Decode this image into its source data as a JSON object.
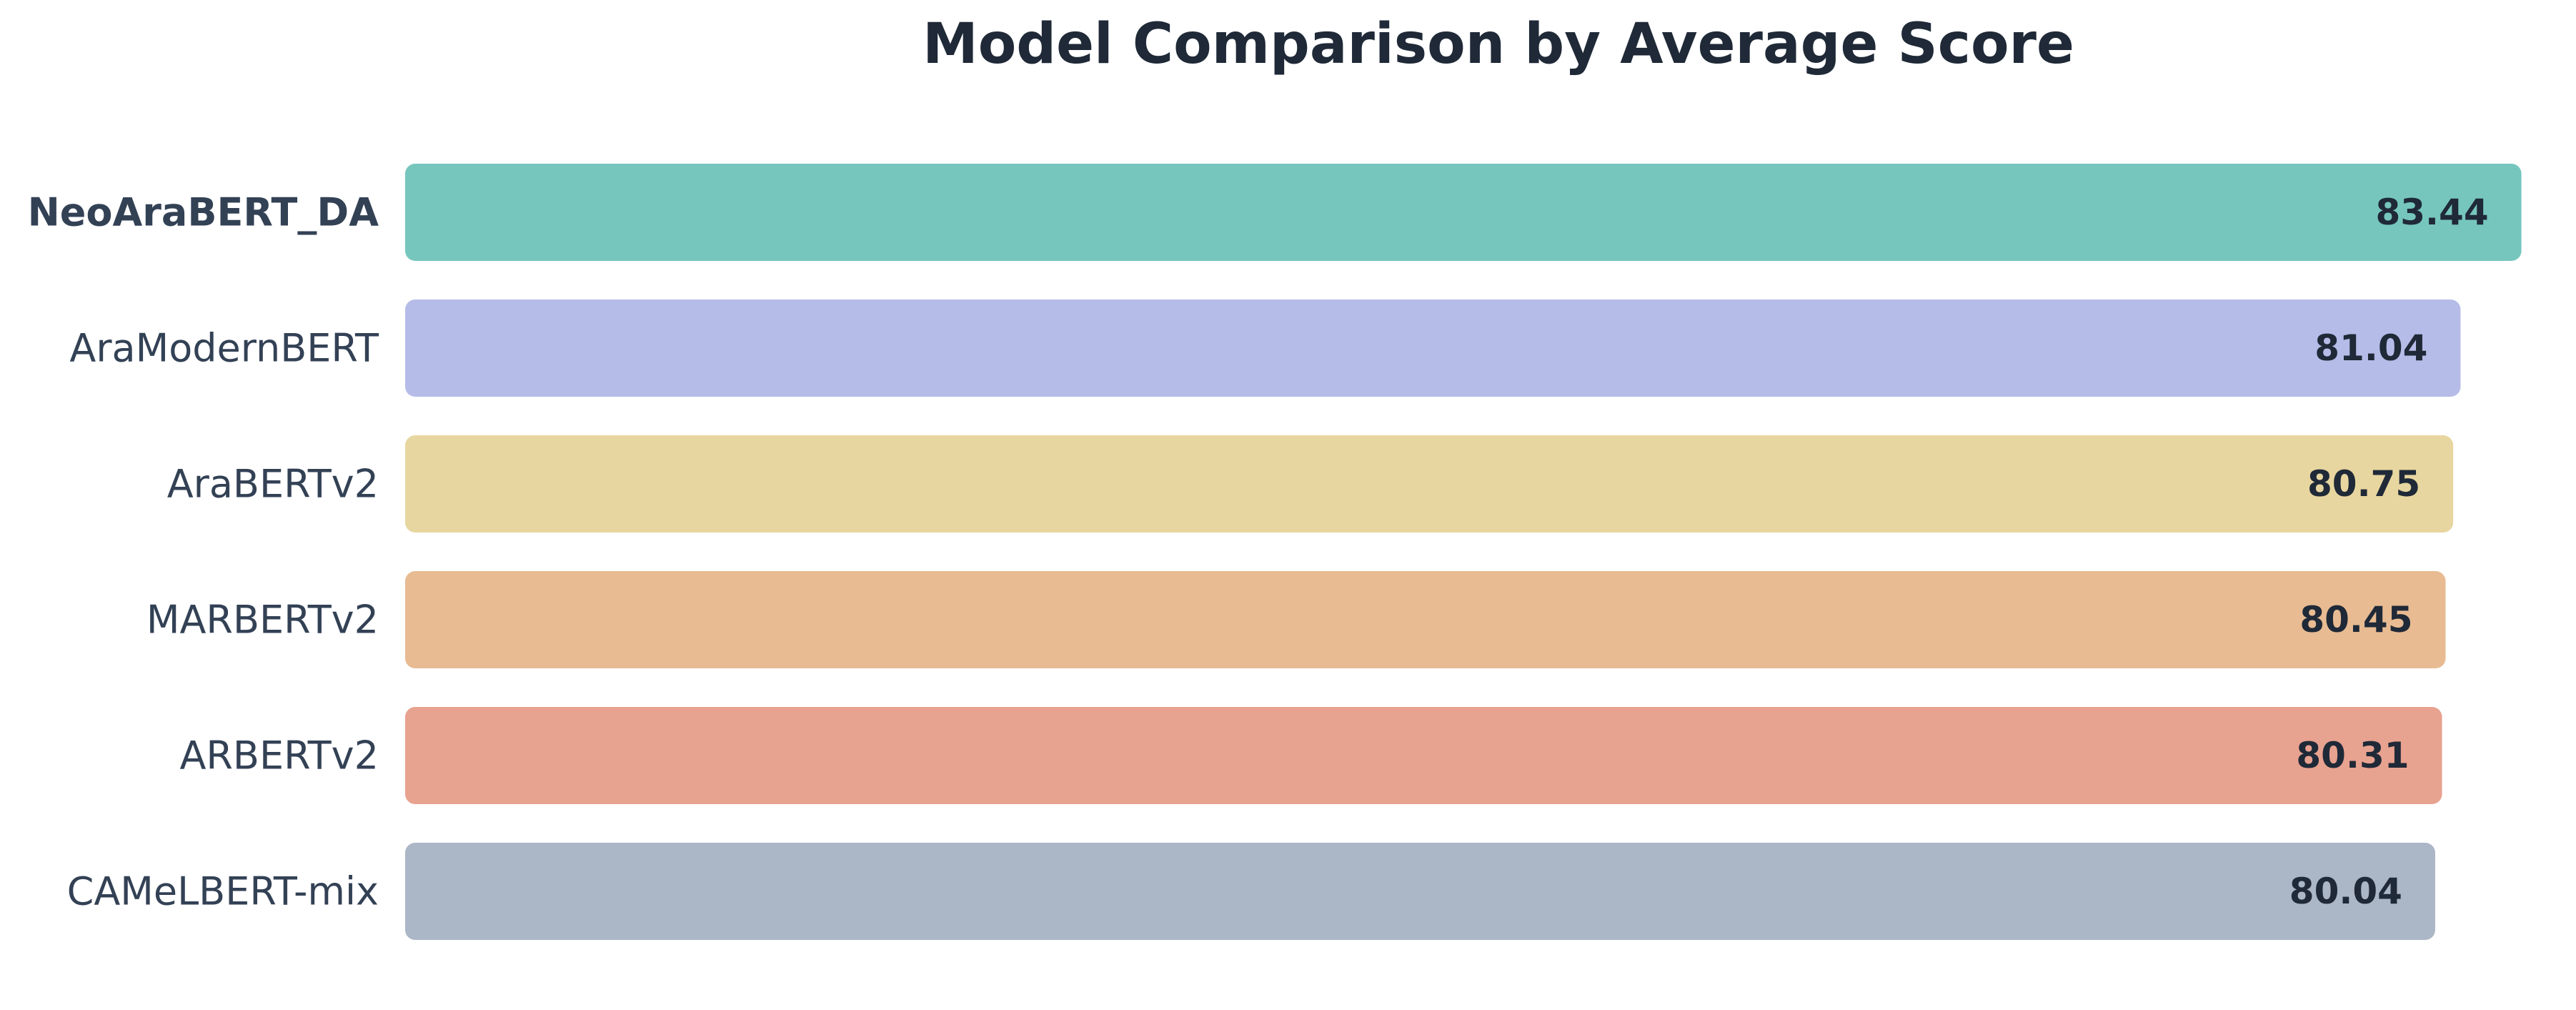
{
  "chart_data": {
    "type": "bar",
    "orientation": "horizontal",
    "title": "Model Comparison by Average Score",
    "xlabel": "",
    "ylabel": "",
    "categories": [
      "NeoAraBERT_DA",
      "AraModernBERT",
      "AraBERTv2",
      "MARBERTv2",
      "ARBERTv2",
      "CAMeLBERT-mix"
    ],
    "values": [
      83.44,
      81.04,
      80.75,
      80.45,
      80.31,
      80.04
    ],
    "value_labels": [
      "83.44",
      "81.04",
      "80.75",
      "80.45",
      "80.31",
      "80.04"
    ],
    "colors": [
      "#76c6be",
      "#b6bce8",
      "#e8d6a0",
      "#e8bb92",
      "#e8a290",
      "#abb6c6"
    ],
    "highlight": "NeoAraBERT_DA",
    "xlim": [
      0,
      85
    ],
    "grid": false,
    "legend": "none"
  }
}
